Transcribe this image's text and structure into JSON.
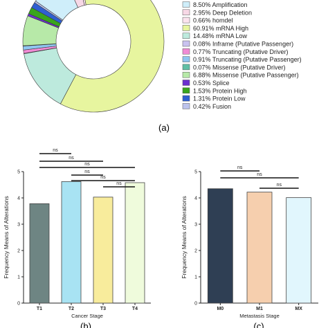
{
  "panels": {
    "a": "(a)",
    "b": "(b)",
    "c": "(c)"
  },
  "chart_data": [
    {
      "type": "pie",
      "donut": true,
      "title": "",
      "legend_position": "right",
      "slices": [
        {
          "label": "Amplification",
          "percent_text": "8.50%",
          "value": 8.5,
          "color": "#cfeefa"
        },
        {
          "label": "Deep Deletion",
          "percent_text": "2.95%",
          "value": 2.95,
          "color": "#f7d8e6"
        },
        {
          "label": "homdel",
          "percent_text": "0.66%",
          "value": 0.66,
          "color": "#fbe3ee"
        },
        {
          "label": "mRNA High",
          "percent_text": "60.91%",
          "value": 60.91,
          "color": "#e7f59f"
        },
        {
          "label": "mRNA Low",
          "percent_text": "14.48%",
          "value": 14.48,
          "color": "#bdeadd"
        },
        {
          "label": "Inframe (Putative Passenger)",
          "percent_text": "0.08%",
          "value": 0.08,
          "color": "#c9c2ef"
        },
        {
          "label": "Truncating (Putative Driver)",
          "percent_text": "0.77%",
          "value": 0.77,
          "color": "#f08bd5"
        },
        {
          "label": "Truncating (Putative Passenger)",
          "percent_text": "0.91%",
          "value": 0.91,
          "color": "#8fc6f0"
        },
        {
          "label": "Missense (Putative Driver)",
          "percent_text": "0.07%",
          "value": 0.07,
          "color": "#5fbfa4"
        },
        {
          "label": "Missense (Putative Passenger)",
          "percent_text": "6.88%",
          "value": 6.88,
          "color": "#b7e9a8"
        },
        {
          "label": "Splice",
          "percent_text": "0.53%",
          "value": 0.53,
          "color": "#6b2fcf"
        },
        {
          "label": "Protein High",
          "percent_text": "1.53%",
          "value": 1.53,
          "color": "#39a51d"
        },
        {
          "label": "Protein Low",
          "percent_text": "1.31%",
          "value": 1.31,
          "color": "#2f5fd0"
        },
        {
          "label": "Fusion",
          "percent_text": "0.42%",
          "value": 0.42,
          "color": "#bcc3ec"
        }
      ]
    },
    {
      "type": "bar",
      "title": "",
      "xlabel": "Cancer Stage",
      "ylabel": "Frequency Means of  Alterations",
      "ylim": [
        0,
        5
      ],
      "yticks": [
        "0",
        "1",
        "2",
        "3",
        "4",
        "5"
      ],
      "categories": [
        "T1",
        "T2",
        "T3",
        "T4"
      ],
      "values": [
        3.78,
        4.62,
        4.03,
        4.58
      ],
      "colors": [
        "#6e8583",
        "#a8e3f3",
        "#f8ec9c",
        "#effbdc"
      ],
      "significance": [
        {
          "from": "T1",
          "to": "T2",
          "label": "ns"
        },
        {
          "from": "T1",
          "to": "T3",
          "label": "ns"
        },
        {
          "from": "T1",
          "to": "T4",
          "label": "ns"
        },
        {
          "from": "T2",
          "to": "T3",
          "label": "ns"
        },
        {
          "from": "T2",
          "to": "T4",
          "label": "ns"
        },
        {
          "from": "T3",
          "to": "T4",
          "label": "ns"
        }
      ]
    },
    {
      "type": "bar",
      "title": "",
      "xlabel": "Metastasis Stage",
      "ylabel": "Frequency Means of  Alterations",
      "ylim": [
        0,
        5
      ],
      "yticks": [
        "0",
        "1",
        "2",
        "3",
        "4",
        "5"
      ],
      "categories": [
        "M0",
        "M1",
        "MX"
      ],
      "values": [
        4.35,
        4.22,
        4.01
      ],
      "colors": [
        "#2f3f54",
        "#f6cfae",
        "#e1f6fd"
      ],
      "significance": [
        {
          "from": "M0",
          "to": "M1",
          "label": "ns"
        },
        {
          "from": "M0",
          "to": "MX",
          "label": "ns"
        },
        {
          "from": "M1",
          "to": "MX",
          "label": "ns"
        }
      ]
    }
  ]
}
